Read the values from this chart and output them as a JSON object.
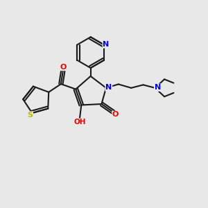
{
  "bg_color": "#e8e8e8",
  "bond_color": "#1a1a1a",
  "bond_lw": 1.5,
  "dbo": 0.012,
  "atom_colors": {
    "N": "#0000ee",
    "O": "#ee0000",
    "S": "#bbbb00",
    "C": "#1a1a1a"
  },
  "font_size": 8.5
}
